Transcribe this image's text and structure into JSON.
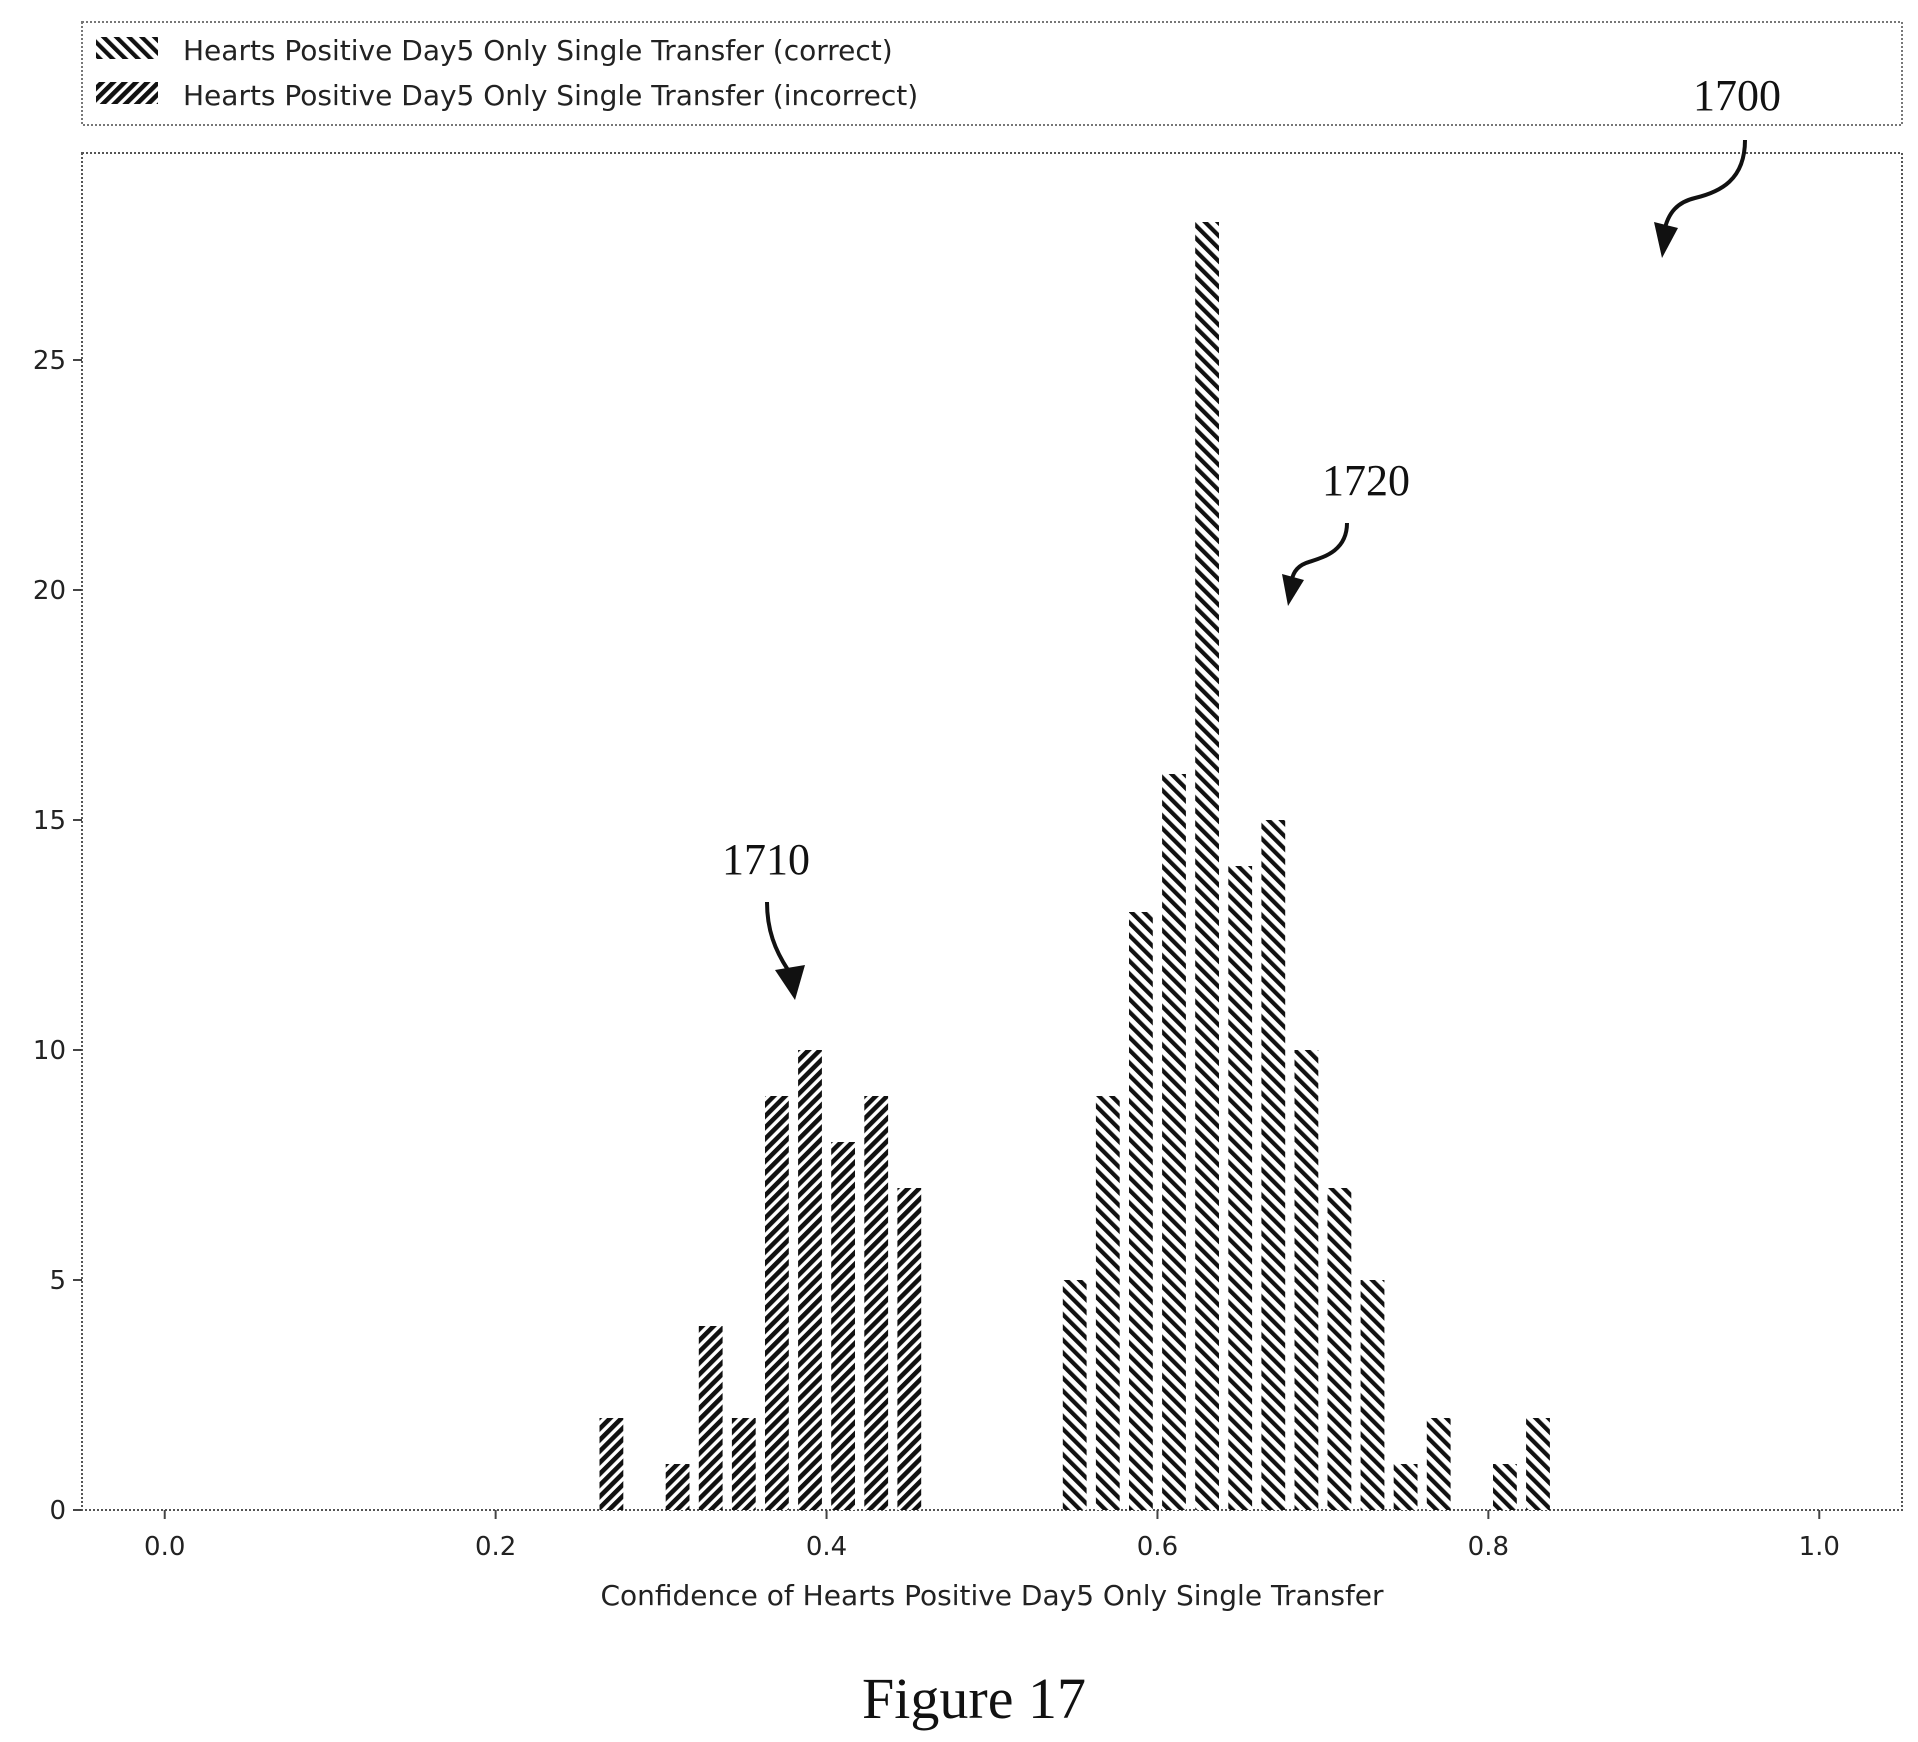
{
  "chart_data": {
    "type": "bar",
    "xlabel": "Confidence of Hearts Positive Day5 Only Single Transfer",
    "xlim": [
      -0.05,
      1.05
    ],
    "ylim": [
      0,
      29.5
    ],
    "xticks": [
      "0.0",
      "0.2",
      "0.4",
      "0.6",
      "0.8",
      "1.0"
    ],
    "yticks": [
      "0",
      "5",
      "10",
      "15",
      "20",
      "25"
    ],
    "bin_width": 0.02,
    "legend_position": "top, outside plot",
    "grid": false,
    "series": [
      {
        "name": "Hearts Positive Day5 Only Single Transfer (correct)",
        "hatch": "backslash",
        "bins": [
          {
            "x": 0.54,
            "value": 5
          },
          {
            "x": 0.56,
            "value": 9
          },
          {
            "x": 0.58,
            "value": 13
          },
          {
            "x": 0.6,
            "value": 16
          },
          {
            "x": 0.62,
            "value": 28
          },
          {
            "x": 0.64,
            "value": 14
          },
          {
            "x": 0.66,
            "value": 15
          },
          {
            "x": 0.68,
            "value": 10
          },
          {
            "x": 0.7,
            "value": 7
          },
          {
            "x": 0.72,
            "value": 5
          },
          {
            "x": 0.74,
            "value": 1
          },
          {
            "x": 0.76,
            "value": 2
          },
          {
            "x": 0.8,
            "value": 1
          },
          {
            "x": 0.82,
            "value": 2
          }
        ]
      },
      {
        "name": "Hearts Positive Day5 Only Single Transfer (incorrect)",
        "hatch": "slash",
        "bins": [
          {
            "x": 0.26,
            "value": 2
          },
          {
            "x": 0.3,
            "value": 1
          },
          {
            "x": 0.32,
            "value": 4
          },
          {
            "x": 0.34,
            "value": 2
          },
          {
            "x": 0.36,
            "value": 9
          },
          {
            "x": 0.38,
            "value": 10
          },
          {
            "x": 0.4,
            "value": 8
          },
          {
            "x": 0.42,
            "value": 9
          },
          {
            "x": 0.44,
            "value": 7
          }
        ]
      }
    ]
  },
  "annotations": {
    "ref_1700": "1700",
    "ref_1710": "1710",
    "ref_1720": "1720"
  },
  "caption": "Figure 17"
}
